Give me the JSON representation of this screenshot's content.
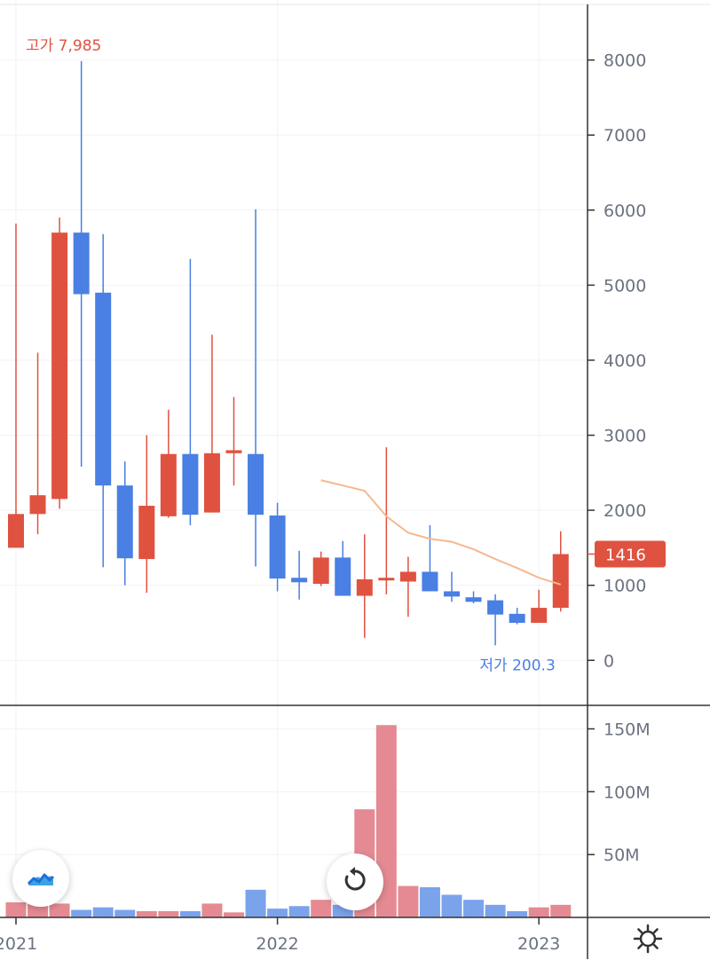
{
  "chart_data": [
    {
      "type": "candlestick",
      "title": "",
      "x": [
        "2021-01",
        "2021-02",
        "2021-03",
        "2021-04",
        "2021-05",
        "2021-06",
        "2021-07",
        "2021-08",
        "2021-09",
        "2021-10",
        "2021-11",
        "2021-12",
        "2022-01",
        "2022-02",
        "2022-03",
        "2022-04",
        "2022-05",
        "2022-06",
        "2022-07",
        "2022-08",
        "2022-09",
        "2022-10",
        "2022-11",
        "2022-12",
        "2023-01",
        "2023-02"
      ],
      "series": [
        {
          "ohlc": [
            [
              1500,
              5820,
              1500,
              1950
            ],
            [
              1950,
              4100,
              1680,
              2200
            ],
            [
              2150,
              5900,
              2020,
              5700
            ],
            [
              5700,
              7985,
              2580,
              4880
            ],
            [
              4900,
              5680,
              1240,
              2330
            ],
            [
              2330,
              2650,
              1000,
              1360
            ],
            [
              1350,
              3000,
              900,
              2060
            ],
            [
              1920,
              3340,
              1900,
              2750
            ],
            [
              2750,
              5350,
              1800,
              1940
            ],
            [
              1970,
              4340,
              1970,
              2760
            ],
            [
              2760,
              3510,
              2330,
              2800
            ],
            [
              2750,
              6010,
              1250,
              1940
            ],
            [
              1930,
              2100,
              920,
              1090
            ],
            [
              1100,
              1460,
              810,
              1040
            ],
            [
              1020,
              1450,
              990,
              1370
            ],
            [
              1370,
              1590,
              860,
              860
            ],
            [
              860,
              1680,
              300,
              1080
            ],
            [
              1080,
              2840,
              880,
              1100
            ],
            [
              1050,
              1380,
              580,
              1180
            ],
            [
              1180,
              1800,
              920,
              920
            ],
            [
              920,
              1180,
              780,
              850
            ],
            [
              840,
              920,
              760,
              780
            ],
            [
              800,
              880,
              200.3,
              610
            ],
            [
              620,
              700,
              480,
              500
            ],
            [
              500,
              940,
              500,
              700
            ],
            [
              700,
              1720,
              650,
              1416
            ]
          ]
        },
        {
          "name": "",
          "type": "line",
          "x": [
            "2022-03",
            "2022-04",
            "2022-05",
            "2022-06",
            "2022-07",
            "2022-08",
            "2022-09",
            "2022-10",
            "2022-11",
            "2022-12",
            "2023-01",
            "2023-02"
          ],
          "values": [
            2400,
            2330,
            2260,
            1920,
            1700,
            1620,
            1580,
            1480,
            1350,
            1230,
            1100,
            1010
          ]
        }
      ],
      "ylim": [
        -600,
        8800
      ],
      "yticks": [
        8000,
        7000,
        6000,
        5000,
        4000,
        3000,
        2000,
        1000,
        0
      ],
      "ytick_labels": [
        "8000",
        "7000",
        "6000",
        "5000",
        "4000",
        "3000",
        "2000",
        "1000",
        "0"
      ],
      "xtick_labels": [
        "2021",
        "2022",
        "2023"
      ],
      "xtick_positions": [
        "2021-01",
        "2022-01",
        "2023-01"
      ],
      "annotations": {
        "high_label": "고가 7,985",
        "low_label": "저가 200.3",
        "last_price": "1416"
      },
      "colors": {
        "up": "#e05240",
        "down": "#4a7fe3",
        "ma": "#f5b98f",
        "badge": "#e05240",
        "high": "#e05240",
        "low": "#4a7fe3"
      }
    },
    {
      "type": "bar",
      "title": "",
      "categories": [
        "2021-01",
        "2021-02",
        "2021-03",
        "2021-04",
        "2021-05",
        "2021-06",
        "2021-07",
        "2021-08",
        "2021-09",
        "2021-10",
        "2021-11",
        "2021-12",
        "2022-01",
        "2022-02",
        "2022-03",
        "2022-04",
        "2022-05",
        "2022-06",
        "2022-07",
        "2022-08",
        "2022-09",
        "2022-10",
        "2022-11",
        "2022-12",
        "2023-01",
        "2023-02"
      ],
      "values": [
        12,
        11,
        11,
        6,
        8,
        6,
        5,
        5,
        5,
        11,
        4,
        22,
        7,
        9,
        14,
        10,
        86,
        153,
        25,
        24,
        18,
        14,
        10,
        5,
        8,
        10
      ],
      "directions": [
        "up",
        "up",
        "up",
        "down",
        "down",
        "down",
        "up",
        "up",
        "down",
        "up",
        "up",
        "down",
        "down",
        "down",
        "up",
        "down",
        "up",
        "up",
        "up",
        "down",
        "down",
        "down",
        "down",
        "down",
        "up",
        "up"
      ],
      "unit": "M",
      "ylim": [
        0,
        168
      ],
      "yticks": [
        150,
        100,
        50
      ],
      "ytick_labels": [
        "150M",
        "100M",
        "50M"
      ],
      "colors": {
        "up": "#e58a93",
        "down": "#7ba3ec"
      }
    }
  ],
  "buttons": {
    "chart_type_icon": "area-chart-icon",
    "reset_icon": "rotate-icon",
    "settings_icon": "gear-icon"
  }
}
